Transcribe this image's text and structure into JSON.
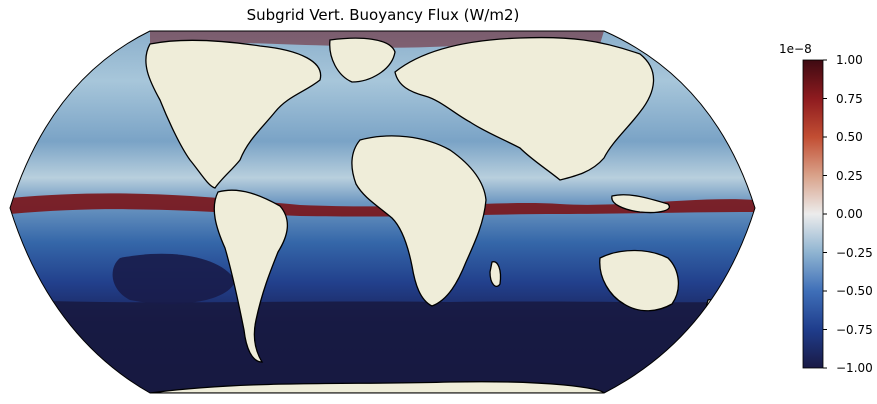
{
  "title": "Subgrid Vert. Buoyancy Flux (W/m2)",
  "colorbar": {
    "exponent_label": "1e−8",
    "ticks": [
      "1.00",
      "0.75",
      "0.50",
      "0.25",
      "0.00",
      "−0.25",
      "−0.50",
      "−0.75",
      "−1.00"
    ],
    "tick_values": [
      1.0,
      0.75,
      0.5,
      0.25,
      0.0,
      -0.25,
      -0.5,
      -0.75,
      -1.0
    ],
    "range": [
      -1.0,
      1.0
    ],
    "colormap": "balance",
    "colors": [
      "#1a1a45",
      "#1f3d8c",
      "#3f6fb8",
      "#8fb4d1",
      "#ececec",
      "#d9a28a",
      "#c24e33",
      "#8e1b1f",
      "#3e0a12"
    ]
  },
  "map": {
    "projection": "robinson",
    "land_color": "#efedd9",
    "coastline_color": "#000000"
  }
}
